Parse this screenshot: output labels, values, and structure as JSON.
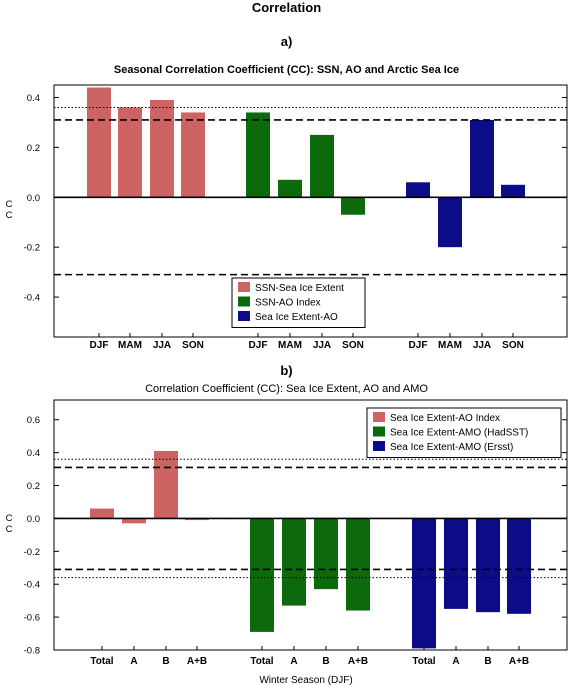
{
  "page": {
    "title": "Correlation"
  },
  "chart_data": [
    {
      "type": "bar",
      "panel_label": "a)",
      "title": "Seasonal Correlation Coefficient (CC): SSN, AO and Arctic Sea Ice",
      "xlabel": "",
      "ylabel": "C\nC",
      "ylim": [
        -0.56,
        0.45
      ],
      "yticks": [
        -0.4,
        -0.2,
        0.0,
        0.2,
        0.4
      ],
      "ytick_labels": [
        "-0.4",
        "-0.2",
        "0.0",
        "0.2",
        "0.4"
      ],
      "grid": false,
      "legend_position": "bottom-center",
      "reference_lines": [
        {
          "y": 0.36,
          "style": "dotted"
        },
        {
          "y": 0.31,
          "style": "dashed"
        },
        {
          "y": -0.31,
          "style": "dashed"
        }
      ],
      "series": [
        {
          "name": "SSN-Sea Ice Extent",
          "color": "#cd6463",
          "categories": [
            "DJF",
            "MAM",
            "JJA",
            "SON"
          ],
          "values": [
            0.44,
            0.36,
            0.39,
            0.34
          ]
        },
        {
          "name": "SSN-AO Index",
          "color": "#0c6a0c",
          "categories": [
            "DJF",
            "MAM",
            "JJA",
            "SON"
          ],
          "values": [
            0.34,
            0.07,
            0.25,
            -0.07
          ]
        },
        {
          "name": "Sea Ice Extent-AO",
          "color": "#0c0c88",
          "categories": [
            "DJF",
            "MAM",
            "JJA",
            "SON"
          ],
          "values": [
            0.06,
            -0.2,
            0.31,
            0.05
          ]
        }
      ]
    },
    {
      "type": "bar",
      "panel_label": "b)",
      "title": "Correlation Coefficient (CC): Sea Ice Extent, AO and AMO",
      "xlabel": "Winter Season (DJF)",
      "ylabel": "C\nC",
      "ylim": [
        -0.8,
        0.72
      ],
      "yticks": [
        -0.8,
        -0.6,
        -0.4,
        -0.2,
        0.0,
        0.2,
        0.4,
        0.6
      ],
      "ytick_labels": [
        "-0.8",
        "-0.6",
        "-0.4",
        "-0.2",
        "0.0",
        "0.2",
        "0.4",
        "0.6"
      ],
      "grid": false,
      "legend_position": "top-right",
      "reference_lines": [
        {
          "y": 0.36,
          "style": "dotted"
        },
        {
          "y": 0.31,
          "style": "dashed"
        },
        {
          "y": -0.31,
          "style": "dashed"
        },
        {
          "y": -0.36,
          "style": "dotted"
        }
      ],
      "series": [
        {
          "name": "Sea Ice Extent-AO Index",
          "color": "#cd6463",
          "categories": [
            "Total",
            "A",
            "B",
            "A+B"
          ],
          "values": [
            0.06,
            -0.03,
            0.41,
            -0.01
          ]
        },
        {
          "name": "Sea Ice Extent-AMO (HadSST)",
          "color": "#0c6a0c",
          "categories": [
            "Total",
            "A",
            "B",
            "A+B"
          ],
          "values": [
            -0.69,
            -0.53,
            -0.43,
            -0.56
          ]
        },
        {
          "name": "Sea Ice Extent-AMO (Ersst)",
          "color": "#0c0c88",
          "categories": [
            "Total",
            "A",
            "B",
            "A+B"
          ],
          "values": [
            -0.79,
            -0.55,
            -0.57,
            -0.58
          ]
        }
      ]
    }
  ]
}
